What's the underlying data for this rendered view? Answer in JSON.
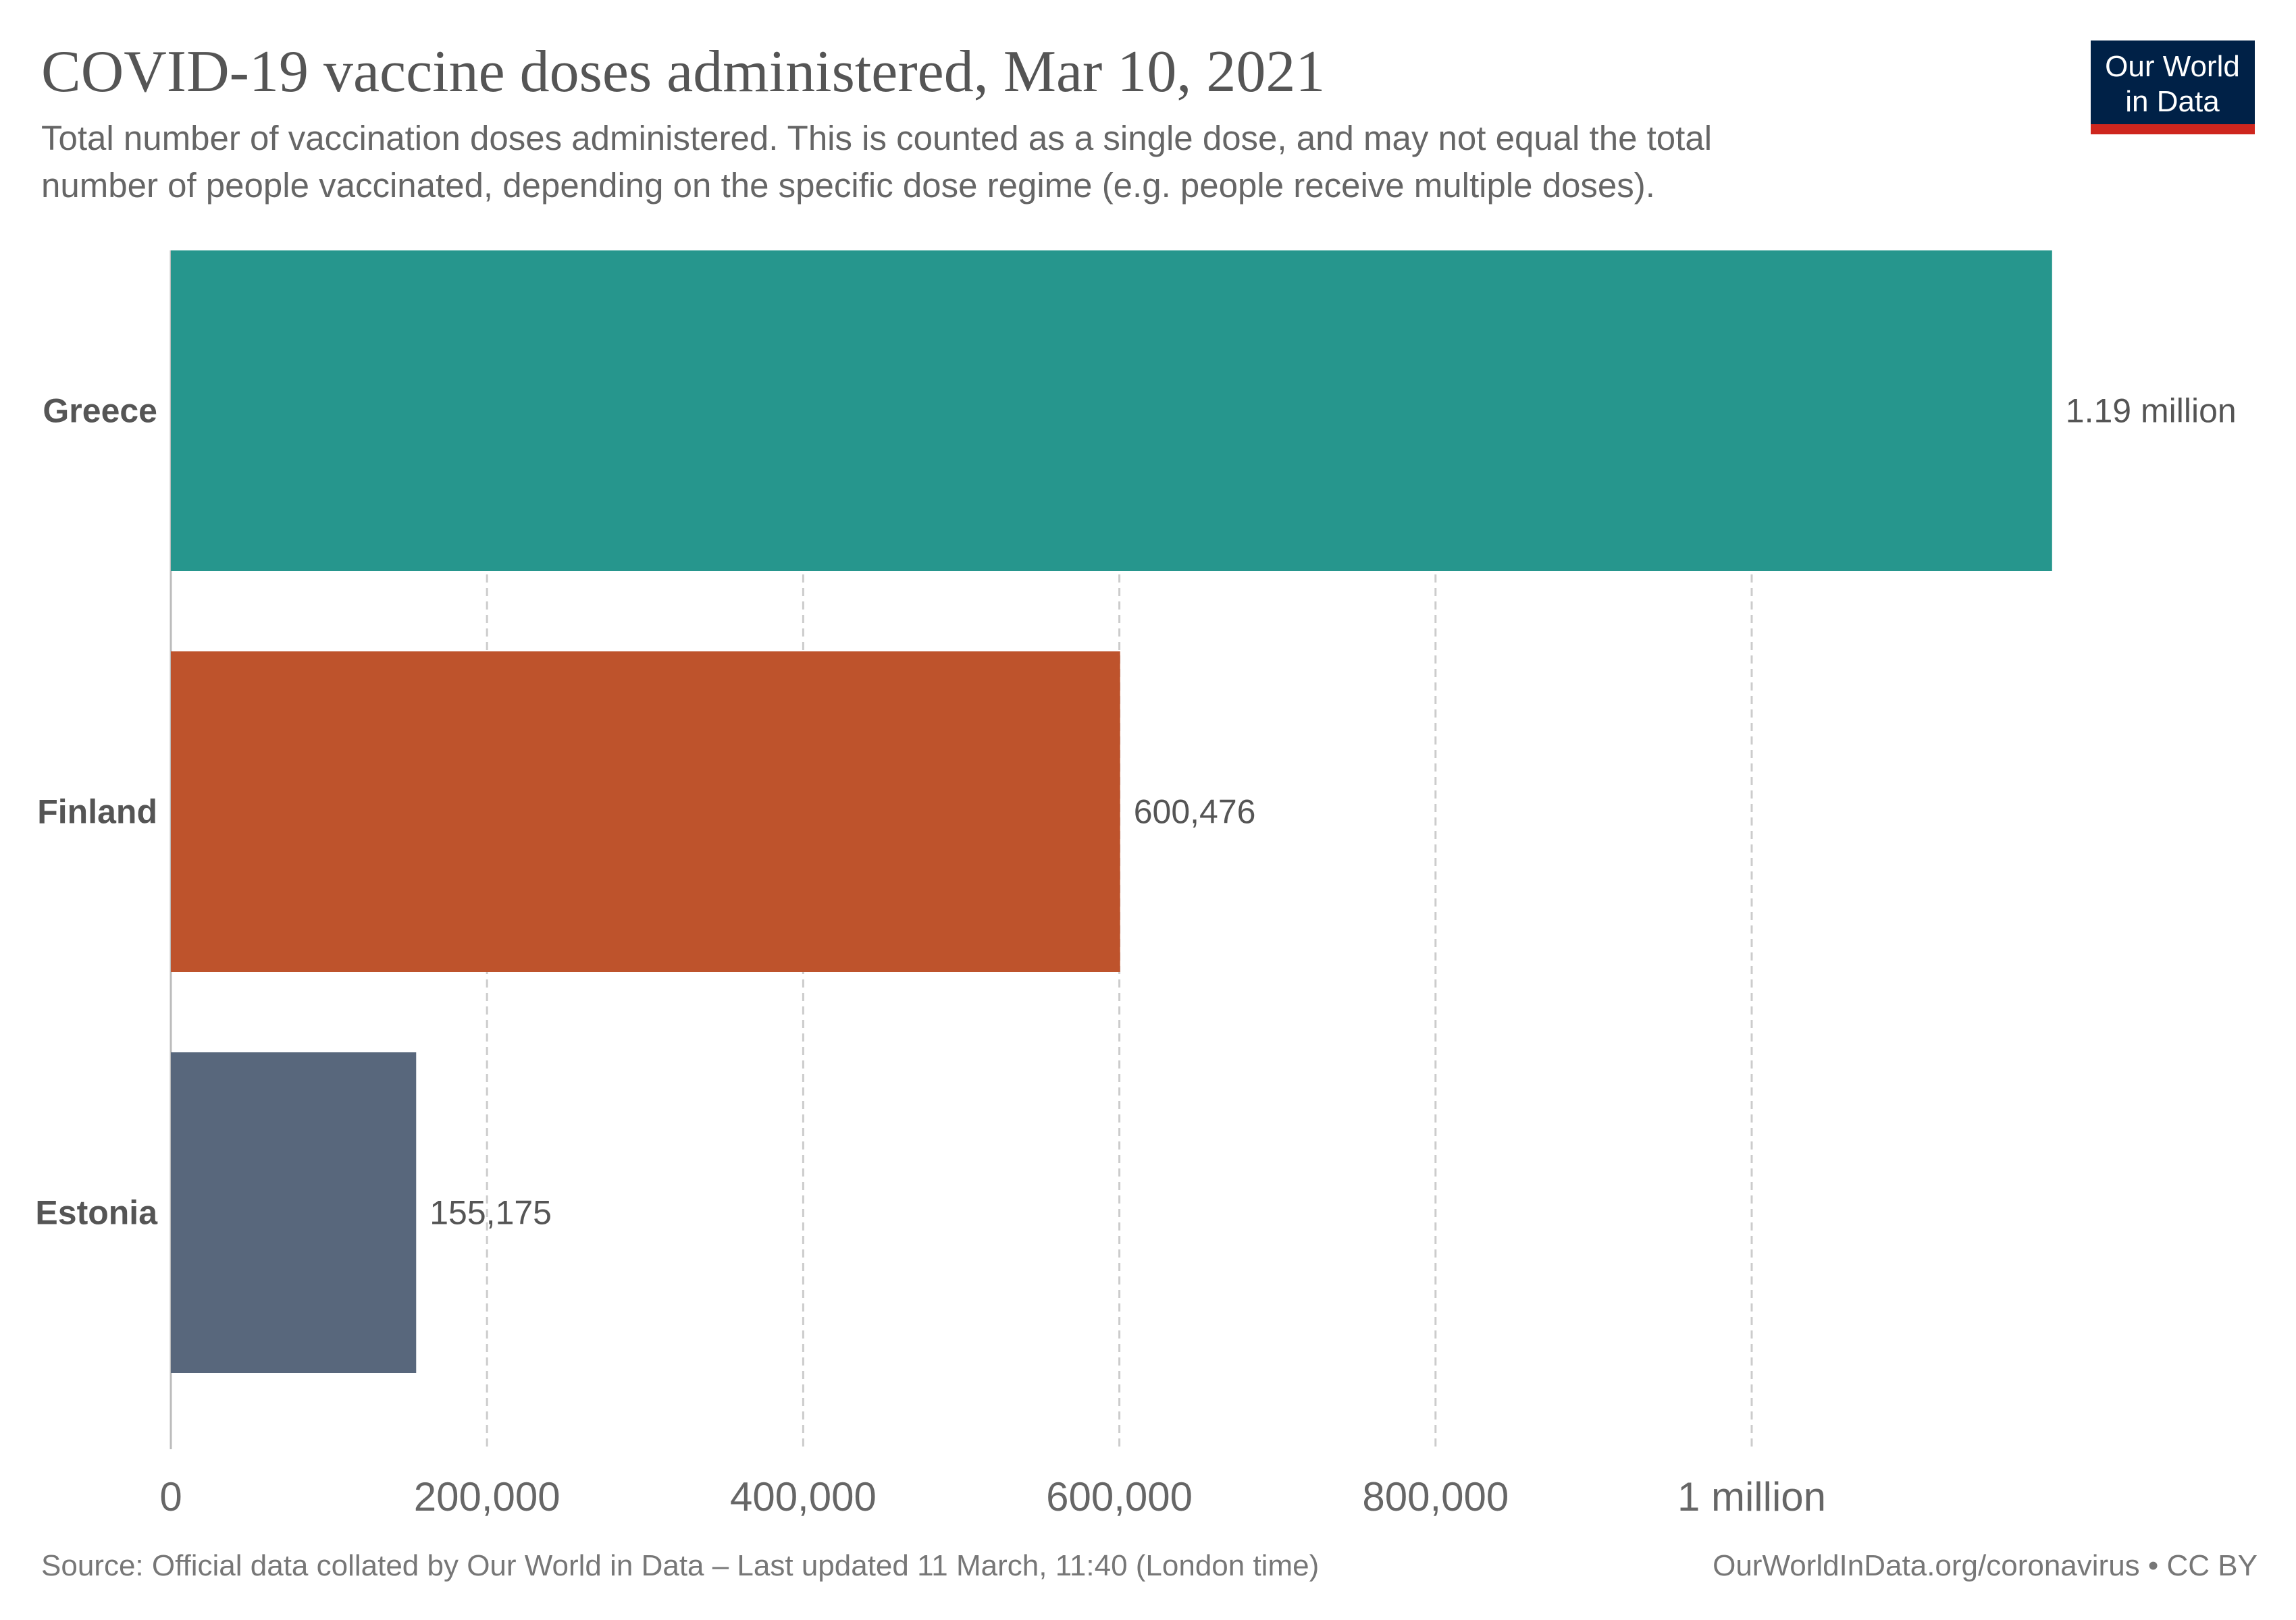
{
  "header": {
    "title": "COVID-19 vaccine doses administered, Mar 10, 2021",
    "subtitle_line1": "Total number of vaccination doses administered. This is counted as a single dose, and may not equal the total",
    "subtitle_line2": "number of people vaccinated, depending on the specific dose regime (e.g. people receive multiple doses).",
    "logo": {
      "line1": "Our World",
      "line2": "in Data",
      "bg": "#002147",
      "accent": "#ce261e"
    }
  },
  "chart_data": {
    "type": "bar",
    "orientation": "horizontal",
    "title": "COVID-19 vaccine doses administered, Mar 10, 2021",
    "categories": [
      "Greece",
      "Finland",
      "Estonia"
    ],
    "values": [
      1190000,
      600476,
      155175
    ],
    "value_labels": [
      "1.19 million",
      "600,476",
      "155,175"
    ],
    "colors": [
      "#26968d",
      "#be532c",
      "#58677c"
    ],
    "xlim": [
      0,
      1200000
    ],
    "xticks": [
      0,
      200000,
      400000,
      600000,
      800000,
      1000000
    ],
    "xtick_labels": [
      "0",
      "200,000",
      "400,000",
      "600,000",
      "800,000",
      "1 million"
    ],
    "grid": "vertical dashed"
  },
  "footer": {
    "source": "Source: Official data collated by Our World in Data – Last updated 11 March, 11:40 (London time)",
    "license": "OurWorldInData.org/coronavirus • CC BY"
  }
}
